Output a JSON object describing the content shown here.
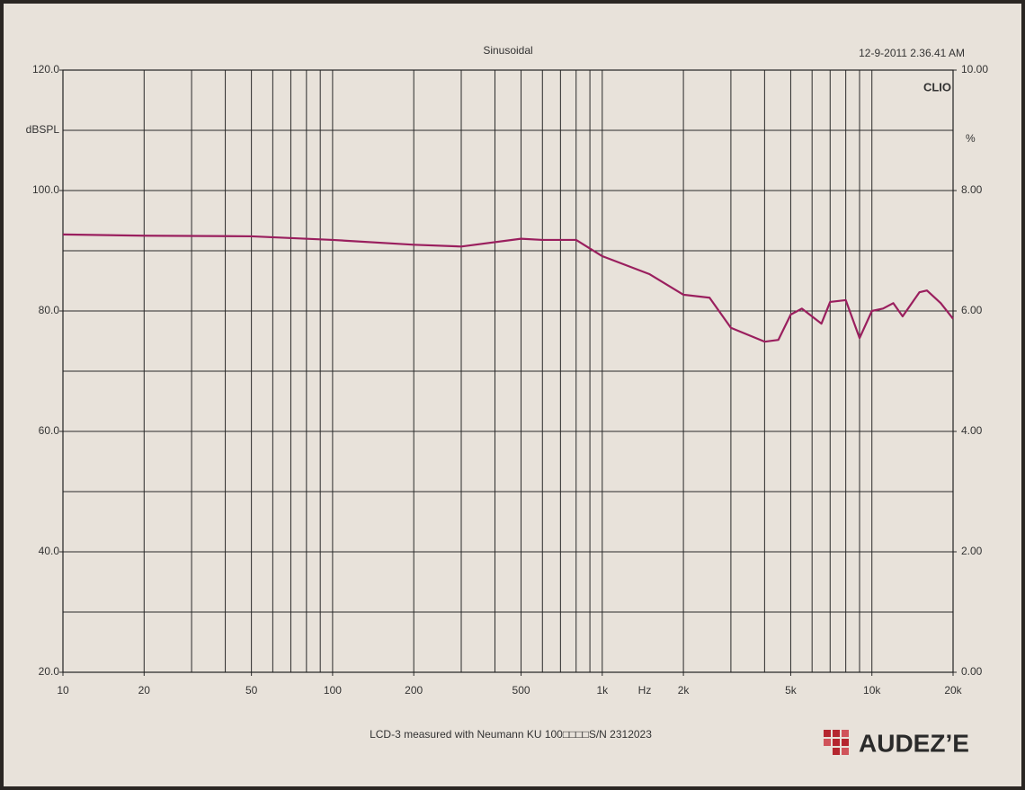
{
  "chart_data": {
    "type": "line",
    "title": "Sinusoidal",
    "timestamp": "12-9-2011 2.36.41 AM",
    "brand": "CLIO",
    "y_label": "dBSPL",
    "y2_label": "%",
    "x_label": "Hz",
    "caption": "LCD-3 measured with Neumann KU 100□□□□S/N 2312023",
    "logo": "AUDEZ’E",
    "log_x": true,
    "grid": true,
    "color": "#9a1f5e",
    "xlim": [
      10,
      20000
    ],
    "ylim": [
      20,
      120
    ],
    "y2lim": [
      0,
      10
    ],
    "xticks": [
      10,
      20,
      50,
      100,
      200,
      500,
      {
        "value": 1000,
        "label": "1k"
      },
      {
        "value": 2000,
        "label": "2k"
      },
      {
        "value": 5000,
        "label": "5k"
      },
      {
        "value": 10000,
        "label": "10k"
      },
      {
        "value": 20000,
        "label": "20k"
      }
    ],
    "xgrid": [
      10,
      20,
      30,
      40,
      50,
      60,
      70,
      80,
      90,
      100,
      200,
      300,
      400,
      500,
      600,
      700,
      800,
      900,
      1000,
      2000,
      3000,
      4000,
      5000,
      6000,
      7000,
      8000,
      9000,
      10000,
      20000
    ],
    "yticks": [
      {
        "value": 20,
        "label": "20.0"
      },
      {
        "value": 40,
        "label": "40.0"
      },
      {
        "value": 60,
        "label": "60.0"
      },
      {
        "value": 80,
        "label": "80.0"
      },
      {
        "value": 100,
        "label": "100.0"
      },
      {
        "value": 120,
        "label": "120.0"
      }
    ],
    "ygrid": [
      20,
      30,
      40,
      50,
      60,
      70,
      80,
      90,
      100,
      110,
      120
    ],
    "y2ticks": [
      {
        "value": 0,
        "label": "0.00"
      },
      {
        "value": 2,
        "label": "2.00"
      },
      {
        "value": 4,
        "label": "4.00"
      },
      {
        "value": 6,
        "label": "6.00"
      },
      {
        "value": 8,
        "label": "8.00"
      },
      {
        "value": 10,
        "label": "10.00"
      }
    ],
    "x": [
      10,
      20,
      50,
      100,
      200,
      300,
      500,
      600,
      800,
      1000,
      1500,
      2000,
      2500,
      3000,
      4000,
      4500,
      5000,
      5500,
      6500,
      7000,
      8000,
      9000,
      10000,
      11000,
      12000,
      13000,
      15000,
      16000,
      18000,
      20000
    ],
    "values": [
      92.7,
      92.5,
      92.4,
      91.8,
      91.0,
      90.7,
      92.0,
      91.8,
      91.8,
      89.1,
      86.1,
      82.7,
      82.2,
      77.2,
      74.9,
      75.2,
      79.4,
      80.4,
      77.9,
      81.5,
      81.8,
      75.5,
      80.0,
      80.4,
      81.3,
      79.1,
      83.1,
      83.4,
      81.3,
      78.7
    ]
  }
}
